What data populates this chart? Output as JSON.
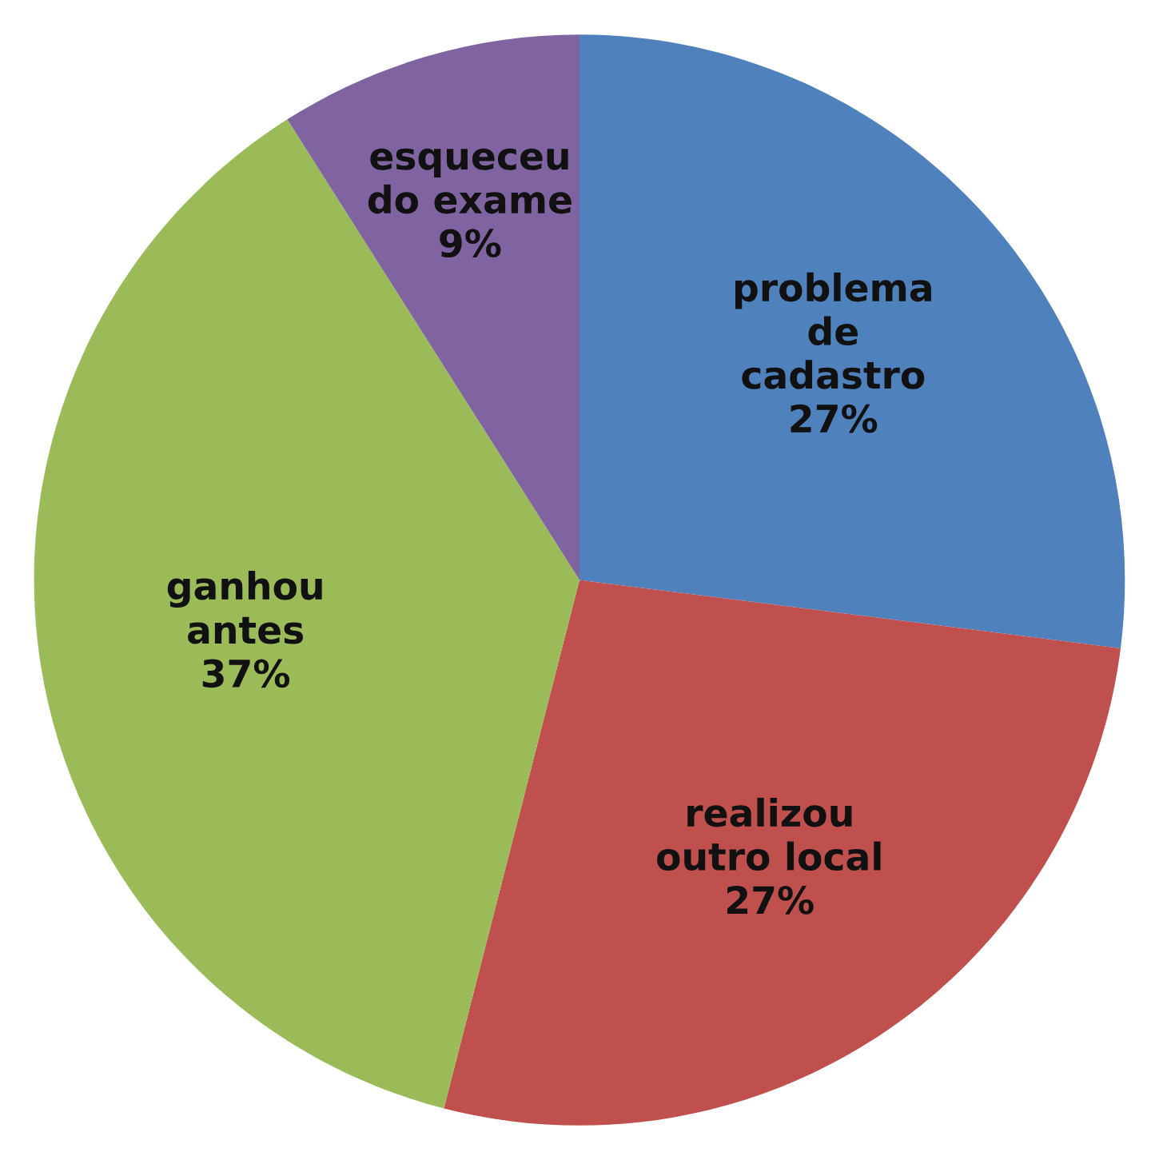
{
  "chart_data": {
    "type": "pie",
    "categories": [
      "problema\nde\ncadastro",
      "realizou\noutro local",
      "ganhou\nantes",
      "esqueceu\ndo exame"
    ],
    "values": [
      27,
      27,
      37,
      9
    ],
    "colors": [
      "#4f81bd",
      "#c0504d",
      "#9bbb59",
      "#8064a2"
    ],
    "value_labels": [
      "27%",
      "27%",
      "37%",
      "9%"
    ]
  }
}
